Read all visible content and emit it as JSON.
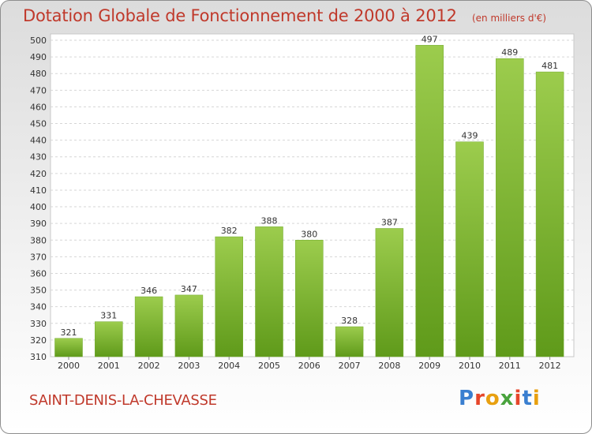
{
  "header": {
    "title": "Dotation Globale de Fonctionnement de 2000 à 2012",
    "unit": "(en milliers d'€)"
  },
  "footer": {
    "commune": "SAINT-DENIS-LA-CHEVASSE",
    "logo_text": "Proxiti"
  },
  "colors": {
    "title": "#c0392b",
    "bar_light": "#9ccc4d",
    "bar_dark": "#5f9a1a",
    "logo": [
      "#3a7fd0",
      "#e6462a",
      "#e8a010",
      "#49a33d",
      "#e6462a",
      "#3a7fd0",
      "#e8a010"
    ]
  },
  "chart_data": {
    "type": "bar",
    "title": "Dotation Globale de Fonctionnement de 2000 à 2012",
    "subtitle": "(en milliers d'€)",
    "categories": [
      "2000",
      "2001",
      "2002",
      "2003",
      "2004",
      "2005",
      "2006",
      "2007",
      "2008",
      "2009",
      "2010",
      "2011",
      "2012"
    ],
    "values": [
      321,
      331,
      346,
      347,
      382,
      388,
      380,
      328,
      387,
      497,
      439,
      489,
      481
    ],
    "ylim": [
      310,
      500
    ],
    "ytick_step": 10,
    "grid": true,
    "xlabel": "",
    "ylabel": ""
  }
}
